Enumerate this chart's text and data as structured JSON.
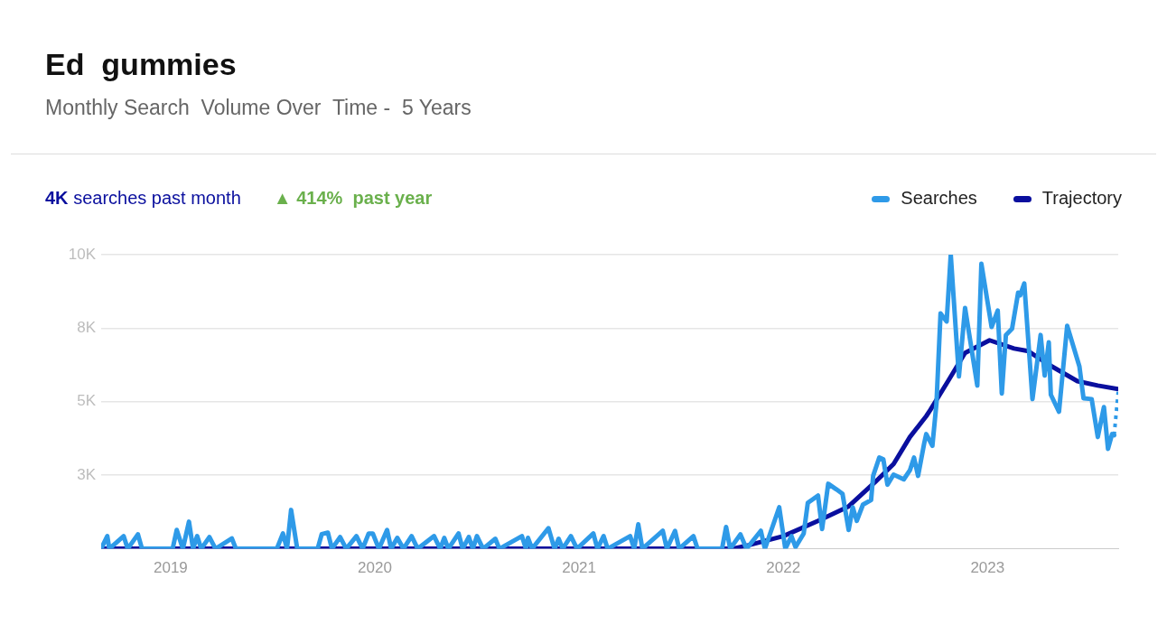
{
  "chart_data": {
    "type": "line",
    "title": "Ed  gummies",
    "subtitle": "Monthly Search  Volume Over  Time -  5 Years",
    "annotations": [
      "4K searches past month",
      "▲ 414%  past year"
    ],
    "xlim": [
      2018.66,
      2023.64
    ],
    "xticks": [
      2019,
      2020,
      2021,
      2022,
      2023
    ],
    "ylim": [
      0,
      10000
    ],
    "yticks": [
      {
        "value": 2500,
        "label": "3K"
      },
      {
        "value": 5000,
        "label": "5K"
      },
      {
        "value": 7500,
        "label": "8K"
      },
      {
        "value": 10000,
        "label": "10K"
      }
    ],
    "grid": "y",
    "legend": "top right",
    "marker": "none",
    "series": [
      {
        "name": "Searches",
        "color": "#2e9ae8",
        "line_style": "solid",
        "x": [
          2018.66,
          2018.69,
          2018.7,
          2018.77,
          2018.79,
          2018.84,
          2018.86,
          2019.01,
          2019.03,
          2019.06,
          2019.09,
          2019.11,
          2019.13,
          2019.15,
          2019.19,
          2019.22,
          2019.3,
          2019.32,
          2019.52,
          2019.55,
          2019.57,
          2019.59,
          2019.62,
          2019.72,
          2019.74,
          2019.77,
          2019.79,
          2019.83,
          2019.86,
          2019.91,
          2019.94,
          2019.97,
          2019.99,
          2020.02,
          2020.06,
          2020.08,
          2020.11,
          2020.14,
          2020.18,
          2020.21,
          2020.29,
          2020.32,
          2020.34,
          2020.36,
          2020.41,
          2020.43,
          2020.46,
          2020.48,
          2020.5,
          2020.53,
          2020.59,
          2020.61,
          2020.72,
          2020.74,
          2020.75,
          2020.77,
          2020.85,
          2020.88,
          2020.9,
          2020.92,
          2020.96,
          2020.99,
          2021.07,
          2021.09,
          2021.12,
          2021.14,
          2021.25,
          2021.27,
          2021.29,
          2021.31,
          2021.41,
          2021.43,
          2021.47,
          2021.49,
          2021.56,
          2021.58,
          2021.7,
          2021.72,
          2021.74,
          2021.79,
          2021.82,
          2021.89,
          2021.91,
          2021.98,
          2022.01,
          2022.04,
          2022.06,
          2022.1,
          2022.12,
          2022.17,
          2022.19,
          2022.22,
          2022.26,
          2022.29,
          2022.32,
          2022.34,
          2022.36,
          2022.39,
          2022.43,
          2022.44,
          2022.47,
          2022.49,
          2022.51,
          2022.54,
          2022.59,
          2022.62,
          2022.64,
          2022.66,
          2022.69,
          2022.7,
          2022.73,
          2022.75,
          2022.77,
          2022.8,
          2022.82,
          2022.86,
          2022.89,
          2022.95,
          2022.97,
          2023.02,
          2023.05,
          2023.07,
          2023.09,
          2023.12,
          2023.15,
          2023.16,
          2023.18,
          2023.22,
          2023.26,
          2023.28,
          2023.3,
          2023.31,
          2023.35,
          2023.39,
          2023.45,
          2023.47,
          2023.51,
          2023.54,
          2023.57,
          2023.59,
          2023.61,
          2023.62
        ],
        "values": [
          0,
          430,
          0,
          430,
          0,
          490,
          0,
          0,
          640,
          0,
          920,
          0,
          430,
          0,
          400,
          0,
          350,
          0,
          0,
          520,
          0,
          1320,
          0,
          0,
          500,
          550,
          0,
          400,
          0,
          430,
          0,
          520,
          520,
          0,
          640,
          0,
          370,
          0,
          430,
          0,
          430,
          0,
          370,
          0,
          520,
          0,
          400,
          0,
          430,
          0,
          340,
          0,
          430,
          0,
          370,
          0,
          700,
          0,
          340,
          0,
          430,
          0,
          520,
          0,
          430,
          0,
          430,
          0,
          830,
          0,
          610,
          0,
          610,
          0,
          430,
          0,
          0,
          740,
          0,
          490,
          0,
          610,
          0,
          1410,
          0,
          430,
          60,
          520,
          1560,
          1810,
          670,
          2210,
          2020,
          1870,
          640,
          1410,
          950,
          1500,
          1660,
          2480,
          3100,
          3040,
          2180,
          2520,
          2360,
          2670,
          3100,
          2480,
          3590,
          3900,
          3500,
          4940,
          8000,
          7730,
          10000,
          5860,
          8190,
          5550,
          9690,
          7540,
          8100,
          5280,
          7270,
          7480,
          8710,
          8620,
          9020,
          5090,
          7270,
          5890,
          7020,
          5240,
          4660,
          7580,
          6200,
          5120,
          5090,
          3800,
          4820,
          3400,
          3900,
          3860
        ]
      },
      {
        "color": "#2e9ae8",
        "line_style": "dotted",
        "x": [
          2023.62,
          2023.64
        ],
        "values": [
          3860,
          5340
        ]
      },
      {
        "name": "Trajectory",
        "color": "#0a0f9e",
        "line_style": "solid",
        "x": [
          2018.66,
          2021.75,
          2021.83,
          2022.0,
          2022.17,
          2022.32,
          2022.45,
          2022.54,
          2022.62,
          2022.7,
          2022.72,
          2022.81,
          2022.89,
          2023.01,
          2023.13,
          2023.2,
          2023.3,
          2023.44,
          2023.54,
          2023.64
        ],
        "values": [
          0,
          0,
          120,
          430,
          950,
          1440,
          2270,
          2880,
          3800,
          4510,
          4720,
          5740,
          6660,
          7090,
          6810,
          6720,
          6260,
          5700,
          5550,
          5430
        ]
      }
    ]
  }
}
